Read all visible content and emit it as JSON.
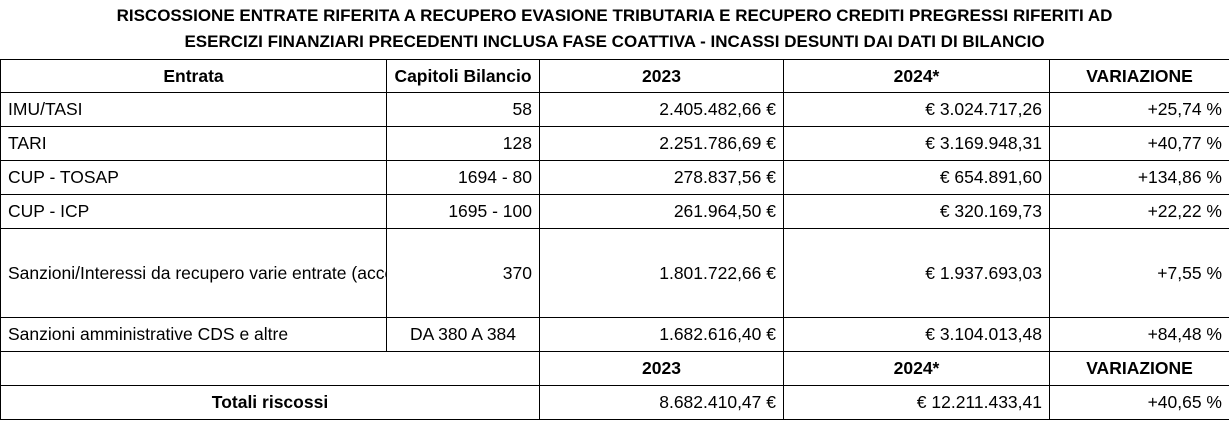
{
  "title": {
    "line1": "RISCOSSIONE ENTRATE RIFERITA A RECUPERO EVASIONE TRIBUTARIA E RECUPERO CREDITI PREGRESSI RIFERITI AD",
    "line2": "ESERCIZI FINANZIARI PRECEDENTI INCLUSA FASE COATTIVA - INCASSI DESUNTI DAI DATI DI BILANCIO"
  },
  "headers": {
    "entrata": "Entrata",
    "capitoli": "Capitoli Bilancio",
    "y2023": "2023",
    "y2024": "2024*",
    "variazione": "VARIAZIONE"
  },
  "rows": [
    {
      "entrata": "IMU/TASI",
      "capitoli": "58",
      "y2023": "2.405.482,66 €",
      "y2024": "€ 3.024.717,26",
      "variazione": "+25,74 %"
    },
    {
      "entrata": "TARI",
      "capitoli": "128",
      "y2023": "2.251.786,69 €",
      "y2024": "€ 3.169.948,31",
      "variazione": "+40,77 %"
    },
    {
      "entrata": "CUP - TOSAP",
      "capitoli": "1694 - 80",
      "y2023": "278.837,56 €",
      "y2024": "€ 654.891,60",
      "variazione": "+134,86 %"
    },
    {
      "entrata": "CUP - ICP",
      "capitoli": "1695 - 100",
      "y2023": "261.964,50 €",
      "y2024": "€ 320.169,73",
      "variazione": "+22,22 %"
    },
    {
      "entrata": "Sanzioni/Interessi da recupero varie entrate (accertamenti esecutivi e riscossione coattiva)",
      "capitoli": "370",
      "y2023": "1.801.722,66 €",
      "y2024": "€ 1.937.693,03",
      "variazione": "+7,55 %"
    },
    {
      "entrata": "Sanzioni amministrative CDS e altre",
      "capitoli": "DA 380 A 384",
      "y2023": "1.682.616,40 €",
      "y2024": "€ 3.104.013,48",
      "variazione": "+84,48 %"
    }
  ],
  "totals_header": {
    "y2023": "2023",
    "y2024": "2024*",
    "variazione": "VARIAZIONE"
  },
  "totals": {
    "label": "Totali riscossi",
    "y2023": "8.682.410,47 €",
    "y2024": "€ 12.211.433,41",
    "variazione": "+40,65 %"
  }
}
